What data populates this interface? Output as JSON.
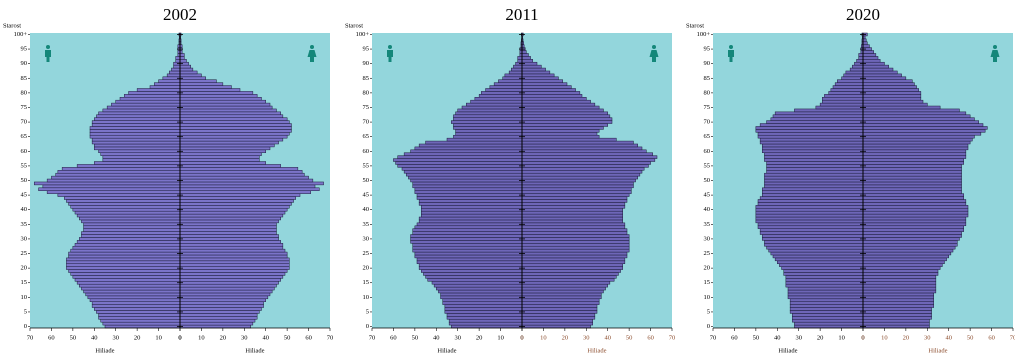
{
  "chart_data": [
    {
      "type": "pyramid",
      "title": "2002",
      "ylabel": "Starost",
      "xlabel": "Hiliade",
      "background": "#93d6dc",
      "categories": [
        "0",
        null,
        null,
        null,
        null,
        "5",
        null,
        null,
        null,
        null,
        "10",
        null,
        null,
        null,
        null,
        "15",
        null,
        null,
        null,
        null,
        "20",
        null,
        null,
        null,
        null,
        "25",
        null,
        null,
        null,
        null,
        "30",
        null,
        null,
        null,
        null,
        "35",
        null,
        null,
        null,
        null,
        "40",
        null,
        null,
        null,
        null,
        "45",
        null,
        null,
        null,
        null,
        "50",
        null,
        null,
        null,
        null,
        "55",
        null,
        null,
        null,
        null,
        "60",
        null,
        null,
        null,
        null,
        "65",
        null,
        null,
        null,
        null,
        "70",
        null,
        null,
        null,
        null,
        "75",
        null,
        null,
        null,
        null,
        "80",
        null,
        null,
        null,
        null,
        "85",
        null,
        null,
        null,
        null,
        "90",
        null,
        null,
        null,
        null,
        "95",
        null,
        null,
        null,
        null,
        "100+"
      ],
      "xlim": [
        0,
        70
      ],
      "xticks": [
        0,
        10,
        20,
        30,
        40,
        50,
        60,
        70
      ],
      "series": [
        {
          "color": "#7b74c9",
          "values": [
            35,
            36,
            37,
            38,
            38,
            39,
            40,
            41,
            41,
            42,
            43,
            44,
            45,
            46,
            47,
            48,
            49,
            50,
            51,
            52,
            53,
            53,
            53,
            53,
            52,
            52,
            51,
            50,
            49,
            48,
            47,
            46,
            46,
            45,
            45,
            45,
            46,
            47,
            48,
            49,
            50,
            51,
            52,
            53,
            54,
            57,
            62,
            66,
            64,
            68,
            62,
            60,
            58,
            57,
            55,
            48,
            40,
            36,
            36,
            37,
            38,
            40,
            40,
            41,
            41,
            42,
            42,
            42,
            42,
            41,
            41,
            40,
            39,
            38,
            36,
            34,
            32,
            30,
            28,
            26,
            24,
            20,
            14,
            12,
            10,
            8,
            6,
            5,
            4,
            3,
            3,
            2,
            2,
            1,
            1,
            1,
            1,
            0.5,
            0.5,
            0.3,
            0.5
          ]
        },
        {
          "color": "#7b74c9",
          "values": [
            33,
            34,
            35,
            36,
            36,
            37,
            38,
            39,
            39,
            40,
            41,
            42,
            43,
            44,
            45,
            46,
            47,
            48,
            49,
            50,
            51,
            51,
            51,
            51,
            50,
            50,
            49,
            48,
            48,
            47,
            46,
            46,
            45,
            45,
            45,
            45,
            46,
            47,
            48,
            49,
            50,
            51,
            52,
            53,
            54,
            56,
            61,
            65,
            63,
            67,
            62,
            60,
            58,
            57,
            55,
            47,
            40,
            37,
            37,
            38,
            40,
            42,
            44,
            46,
            48,
            50,
            51,
            52,
            52,
            52,
            51,
            50,
            48,
            47,
            45,
            43,
            42,
            40,
            38,
            36,
            34,
            28,
            24,
            20,
            17,
            12,
            10,
            8,
            6,
            5,
            4,
            3,
            2,
            2,
            1,
            1,
            1,
            0.5,
            0.5,
            0.3,
            0.5
          ]
        }
      ]
    },
    {
      "type": "pyramid",
      "title": "2011",
      "ylabel": "Starost",
      "xlabel": "Hiliade",
      "background": "#93d6dc",
      "categories": [
        "0",
        null,
        null,
        null,
        null,
        "5",
        null,
        null,
        null,
        null,
        "10",
        null,
        null,
        null,
        null,
        "15",
        null,
        null,
        null,
        null,
        "20",
        null,
        null,
        null,
        null,
        "25",
        null,
        null,
        null,
        null,
        "30",
        null,
        null,
        null,
        null,
        "35",
        null,
        null,
        null,
        null,
        "40",
        null,
        null,
        null,
        null,
        "45",
        null,
        null,
        null,
        null,
        "50",
        null,
        null,
        null,
        null,
        "55",
        null,
        null,
        null,
        null,
        "60",
        null,
        null,
        null,
        null,
        "65",
        null,
        null,
        null,
        null,
        "70",
        null,
        null,
        null,
        null,
        "75",
        null,
        null,
        null,
        null,
        "80",
        null,
        null,
        null,
        null,
        "85",
        null,
        null,
        null,
        null,
        "90",
        null,
        null,
        null,
        null,
        "95",
        null,
        null,
        null,
        null,
        "100+"
      ],
      "xlim": [
        0,
        70
      ],
      "xticks": [
        0,
        10,
        20,
        30,
        40,
        50,
        60,
        70
      ],
      "series": [
        {
          "color": "#6e66b8",
          "values": [
            33,
            34,
            34,
            35,
            35,
            36,
            36,
            36,
            37,
            37,
            38,
            38,
            39,
            40,
            41,
            42,
            44,
            45,
            46,
            47,
            48,
            48,
            49,
            49,
            50,
            50,
            51,
            51,
            51,
            52,
            52,
            52,
            51,
            51,
            50,
            49,
            48,
            48,
            47,
            47,
            47,
            47,
            48,
            48,
            49,
            49,
            50,
            50,
            51,
            51,
            52,
            53,
            54,
            55,
            56,
            58,
            59,
            60,
            58,
            55,
            52,
            50,
            48,
            45,
            35,
            32,
            31,
            31,
            32,
            32,
            33,
            32,
            32,
            31,
            30,
            28,
            26,
            24,
            22,
            20,
            19,
            17,
            15,
            13,
            11,
            9,
            8,
            6,
            5,
            4,
            3,
            2,
            2,
            1,
            1,
            1,
            0.5,
            0.5,
            0.3,
            0.2,
            0.3
          ]
        },
        {
          "color": "#6e66b8",
          "values": [
            32,
            33,
            33,
            34,
            34,
            35,
            35,
            35,
            36,
            36,
            37,
            37,
            38,
            39,
            40,
            41,
            43,
            44,
            45,
            46,
            47,
            47,
            48,
            48,
            49,
            49,
            50,
            50,
            50,
            50,
            50,
            50,
            49,
            49,
            48,
            48,
            47,
            47,
            47,
            47,
            47,
            48,
            48,
            49,
            49,
            50,
            51,
            51,
            52,
            52,
            53,
            54,
            55,
            56,
            57,
            59,
            60,
            62,
            63,
            61,
            58,
            56,
            54,
            52,
            44,
            36,
            35,
            36,
            38,
            40,
            42,
            42,
            41,
            40,
            38,
            36,
            34,
            32,
            30,
            28,
            27,
            25,
            23,
            21,
            19,
            17,
            15,
            13,
            11,
            9,
            7,
            5,
            4,
            3,
            2,
            1.5,
            1,
            0.8,
            0.5,
            0.3,
            0.6
          ]
        }
      ]
    },
    {
      "type": "pyramid",
      "title": "2020",
      "ylabel": "Starost",
      "xlabel": "Hiliade",
      "background": "#93d6dc",
      "categories": [
        "0",
        null,
        null,
        null,
        null,
        "5",
        null,
        null,
        null,
        null,
        "10",
        null,
        null,
        null,
        null,
        "15",
        null,
        null,
        null,
        null,
        "20",
        null,
        null,
        null,
        null,
        "25",
        null,
        null,
        null,
        null,
        "30",
        null,
        null,
        null,
        null,
        "35",
        null,
        null,
        null,
        null,
        "40",
        null,
        null,
        null,
        null,
        "45",
        null,
        null,
        null,
        null,
        "50",
        null,
        null,
        null,
        null,
        "55",
        null,
        null,
        null,
        null,
        "60",
        null,
        null,
        null,
        null,
        "65",
        null,
        null,
        null,
        null,
        "70",
        null,
        null,
        null,
        null,
        "75",
        null,
        null,
        null,
        null,
        "80",
        null,
        null,
        null,
        null,
        "85",
        null,
        null,
        null,
        null,
        "90",
        null,
        null,
        null,
        null,
        "95",
        null,
        null,
        null,
        null,
        "100+"
      ],
      "xlim": [
        0,
        70
      ],
      "xticks": [
        0,
        10,
        20,
        30,
        40,
        50,
        60,
        70
      ],
      "series": [
        {
          "color": "#6e66b8",
          "values": [
            32,
            32,
            33,
            33,
            33,
            34,
            34,
            34,
            34,
            34,
            35,
            35,
            35,
            35,
            36,
            36,
            36,
            36,
            37,
            37,
            38,
            39,
            40,
            41,
            42,
            43,
            44,
            45,
            46,
            46,
            47,
            47,
            48,
            48,
            49,
            49,
            50,
            50,
            50,
            50,
            50,
            50,
            49,
            49,
            48,
            47,
            47,
            47,
            46,
            46,
            46,
            46,
            46,
            45,
            45,
            45,
            45,
            46,
            46,
            46,
            47,
            47,
            47,
            48,
            48,
            49,
            49,
            50,
            50,
            48,
            45,
            43,
            42,
            41,
            32,
            22,
            20,
            19,
            19,
            18,
            16,
            15,
            14,
            13,
            12,
            10,
            9,
            8,
            6,
            5,
            4,
            3,
            2,
            2,
            1,
            1,
            0.8,
            0.5,
            0.5,
            0.3,
            0.5
          ]
        },
        {
          "color": "#6e66b8",
          "values": [
            31,
            31,
            31,
            32,
            32,
            32,
            32,
            33,
            33,
            33,
            33,
            33,
            34,
            34,
            34,
            34,
            34,
            34,
            35,
            35,
            36,
            37,
            38,
            39,
            40,
            41,
            42,
            43,
            44,
            44,
            45,
            46,
            46,
            47,
            47,
            48,
            48,
            48,
            49,
            49,
            49,
            49,
            48,
            48,
            47,
            47,
            46,
            46,
            46,
            46,
            46,
            46,
            46,
            46,
            46,
            46,
            47,
            47,
            48,
            48,
            48,
            49,
            49,
            50,
            51,
            52,
            55,
            57,
            58,
            56,
            54,
            52,
            50,
            48,
            45,
            36,
            30,
            28,
            27,
            27,
            27,
            26,
            25,
            24,
            23,
            20,
            18,
            16,
            14,
            12,
            10,
            8,
            7,
            6,
            5,
            4,
            3,
            2,
            1.5,
            1,
            2
          ]
        }
      ]
    }
  ]
}
